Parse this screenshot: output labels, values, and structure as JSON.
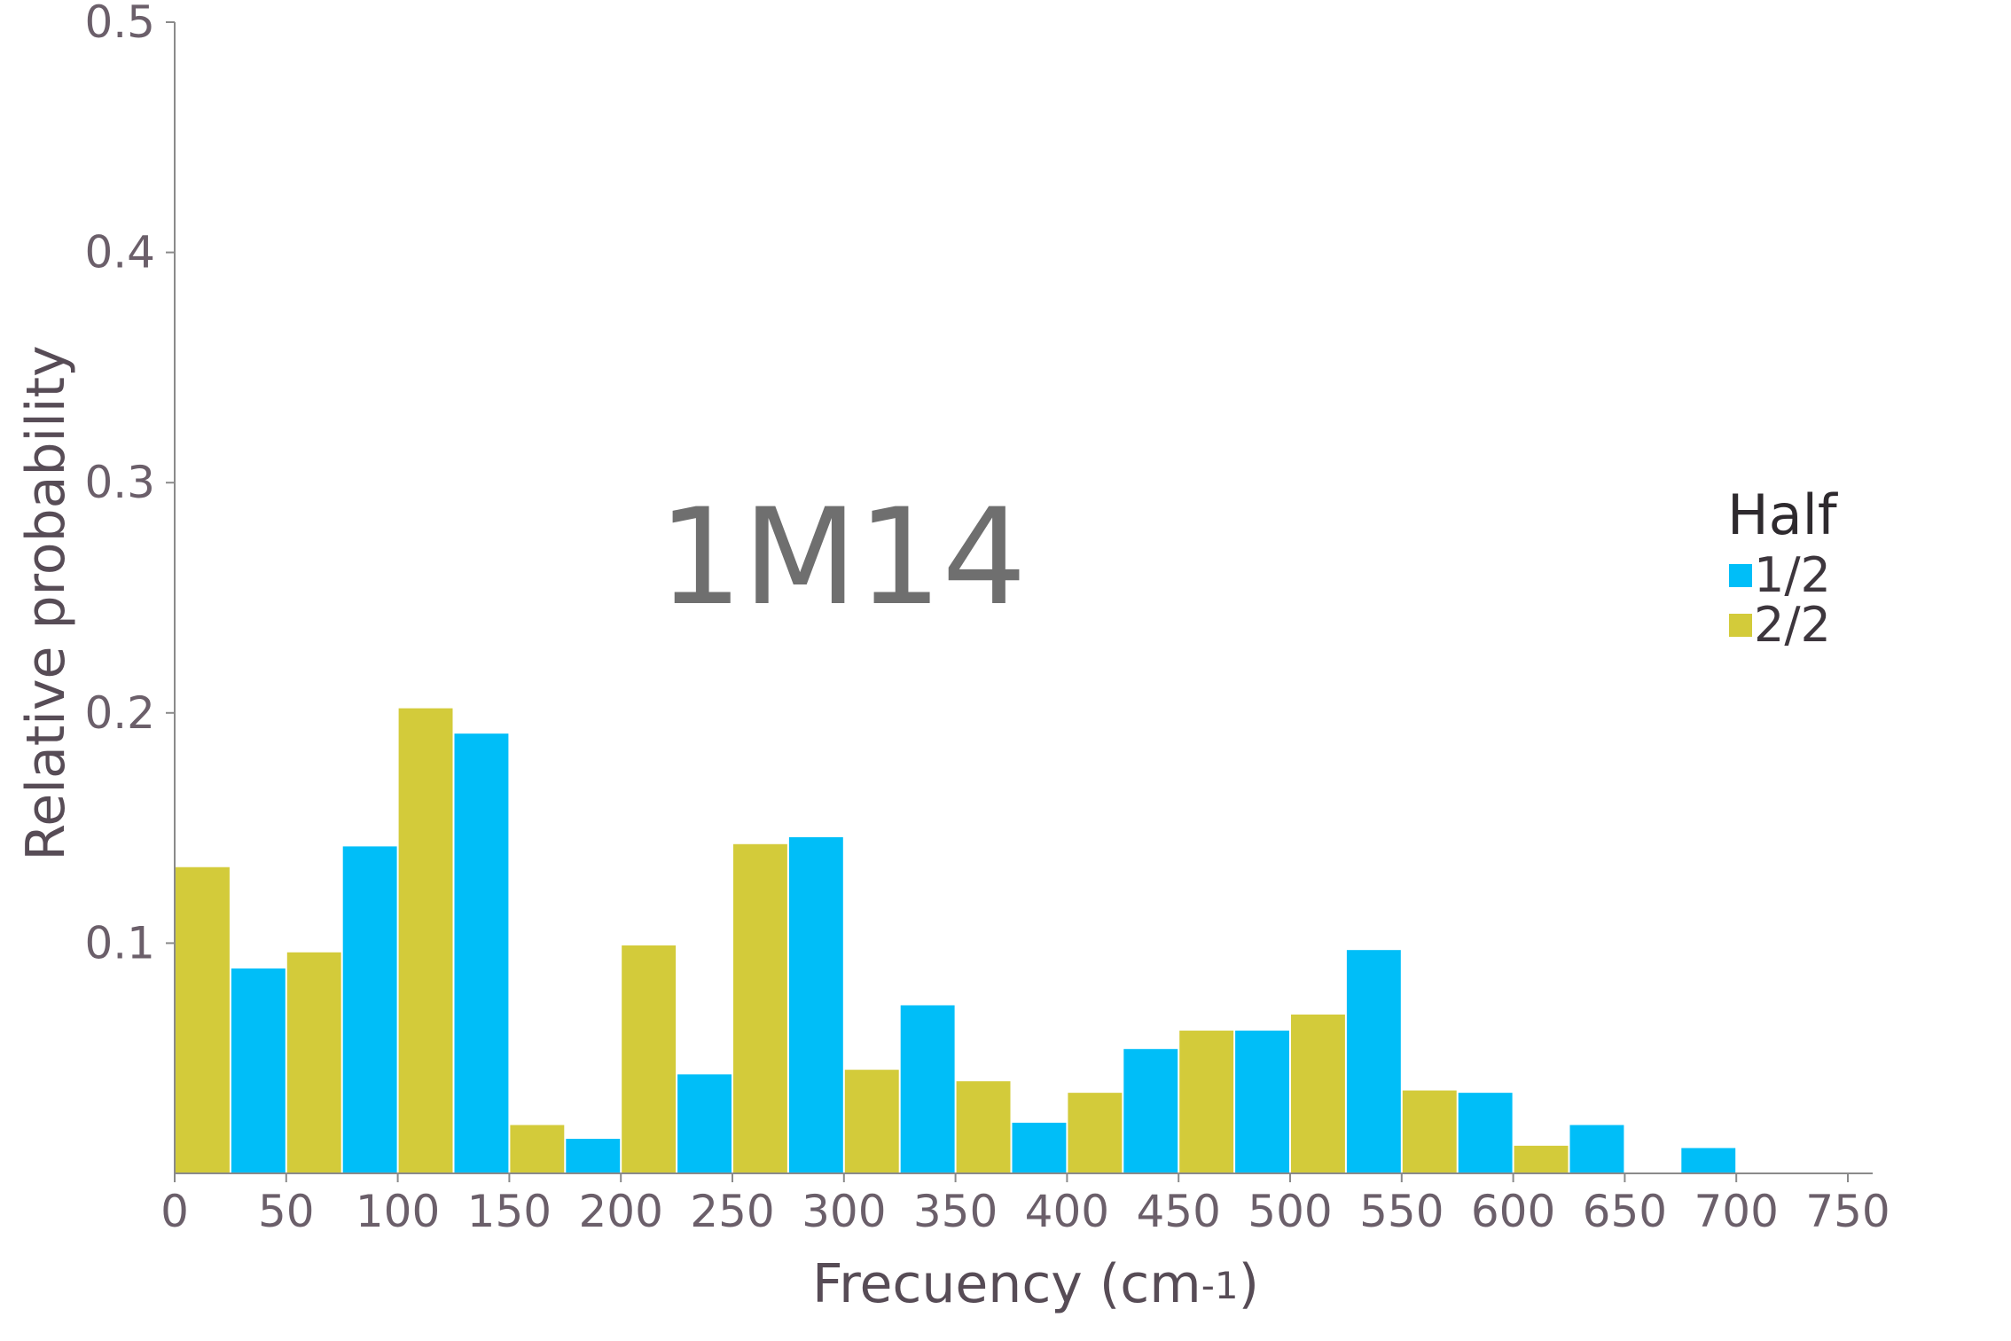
{
  "chart_data": {
    "type": "bar",
    "title": "1M14",
    "xlabel": "Frecuency (cm",
    "xlabel_superscript": "-1",
    "xlabel_close": ")",
    "ylabel": "Relative probability",
    "xlim": [
      0,
      750
    ],
    "ylim": [
      0,
      0.5
    ],
    "x_ticks": [
      "0",
      "50",
      "100",
      "150",
      "200",
      "250",
      "300",
      "350",
      "400",
      "450",
      "500",
      "550",
      "600",
      "650",
      "700",
      "750"
    ],
    "y_ticks": [
      "0.1",
      "0.2",
      "0.3",
      "0.4",
      "0.5"
    ],
    "legend": {
      "title": "Half",
      "position": "right",
      "entries": [
        {
          "label": "1/2",
          "color": "#00bef8"
        },
        {
          "label": "2/2",
          "color": "#d3cb3a"
        }
      ]
    },
    "bin_width": 25,
    "bins": [
      {
        "x0": 0,
        "series": "2/2",
        "value": 0.133
      },
      {
        "x0": 25,
        "series": "1/2",
        "value": 0.089
      },
      {
        "x0": 50,
        "series": "2/2",
        "value": 0.096
      },
      {
        "x0": 75,
        "series": "1/2",
        "value": 0.142
      },
      {
        "x0": 100,
        "series": "2/2",
        "value": 0.202
      },
      {
        "x0": 125,
        "series": "1/2",
        "value": 0.191
      },
      {
        "x0": 150,
        "series": "2/2",
        "value": 0.021
      },
      {
        "x0": 175,
        "series": "1/2",
        "value": 0.015
      },
      {
        "x0": 200,
        "series": "2/2",
        "value": 0.099
      },
      {
        "x0": 225,
        "series": "1/2",
        "value": 0.043
      },
      {
        "x0": 250,
        "series": "2/2",
        "value": 0.143
      },
      {
        "x0": 275,
        "series": "1/2",
        "value": 0.146
      },
      {
        "x0": 300,
        "series": "2/2",
        "value": 0.045
      },
      {
        "x0": 325,
        "series": "1/2",
        "value": 0.073
      },
      {
        "x0": 350,
        "series": "2/2",
        "value": 0.04
      },
      {
        "x0": 375,
        "series": "1/2",
        "value": 0.022
      },
      {
        "x0": 400,
        "series": "2/2",
        "value": 0.035
      },
      {
        "x0": 425,
        "series": "1/2",
        "value": 0.054
      },
      {
        "x0": 450,
        "series": "2/2",
        "value": 0.062
      },
      {
        "x0": 475,
        "series": "1/2",
        "value": 0.062
      },
      {
        "x0": 500,
        "series": "2/2",
        "value": 0.069
      },
      {
        "x0": 525,
        "series": "1/2",
        "value": 0.097
      },
      {
        "x0": 550,
        "series": "2/2",
        "value": 0.036
      },
      {
        "x0": 575,
        "series": "1/2",
        "value": 0.035
      },
      {
        "x0": 600,
        "series": "2/2",
        "value": 0.012
      },
      {
        "x0": 625,
        "series": "1/2",
        "value": 0.021
      },
      {
        "x0": 675,
        "series": "1/2",
        "value": 0.011
      }
    ]
  }
}
